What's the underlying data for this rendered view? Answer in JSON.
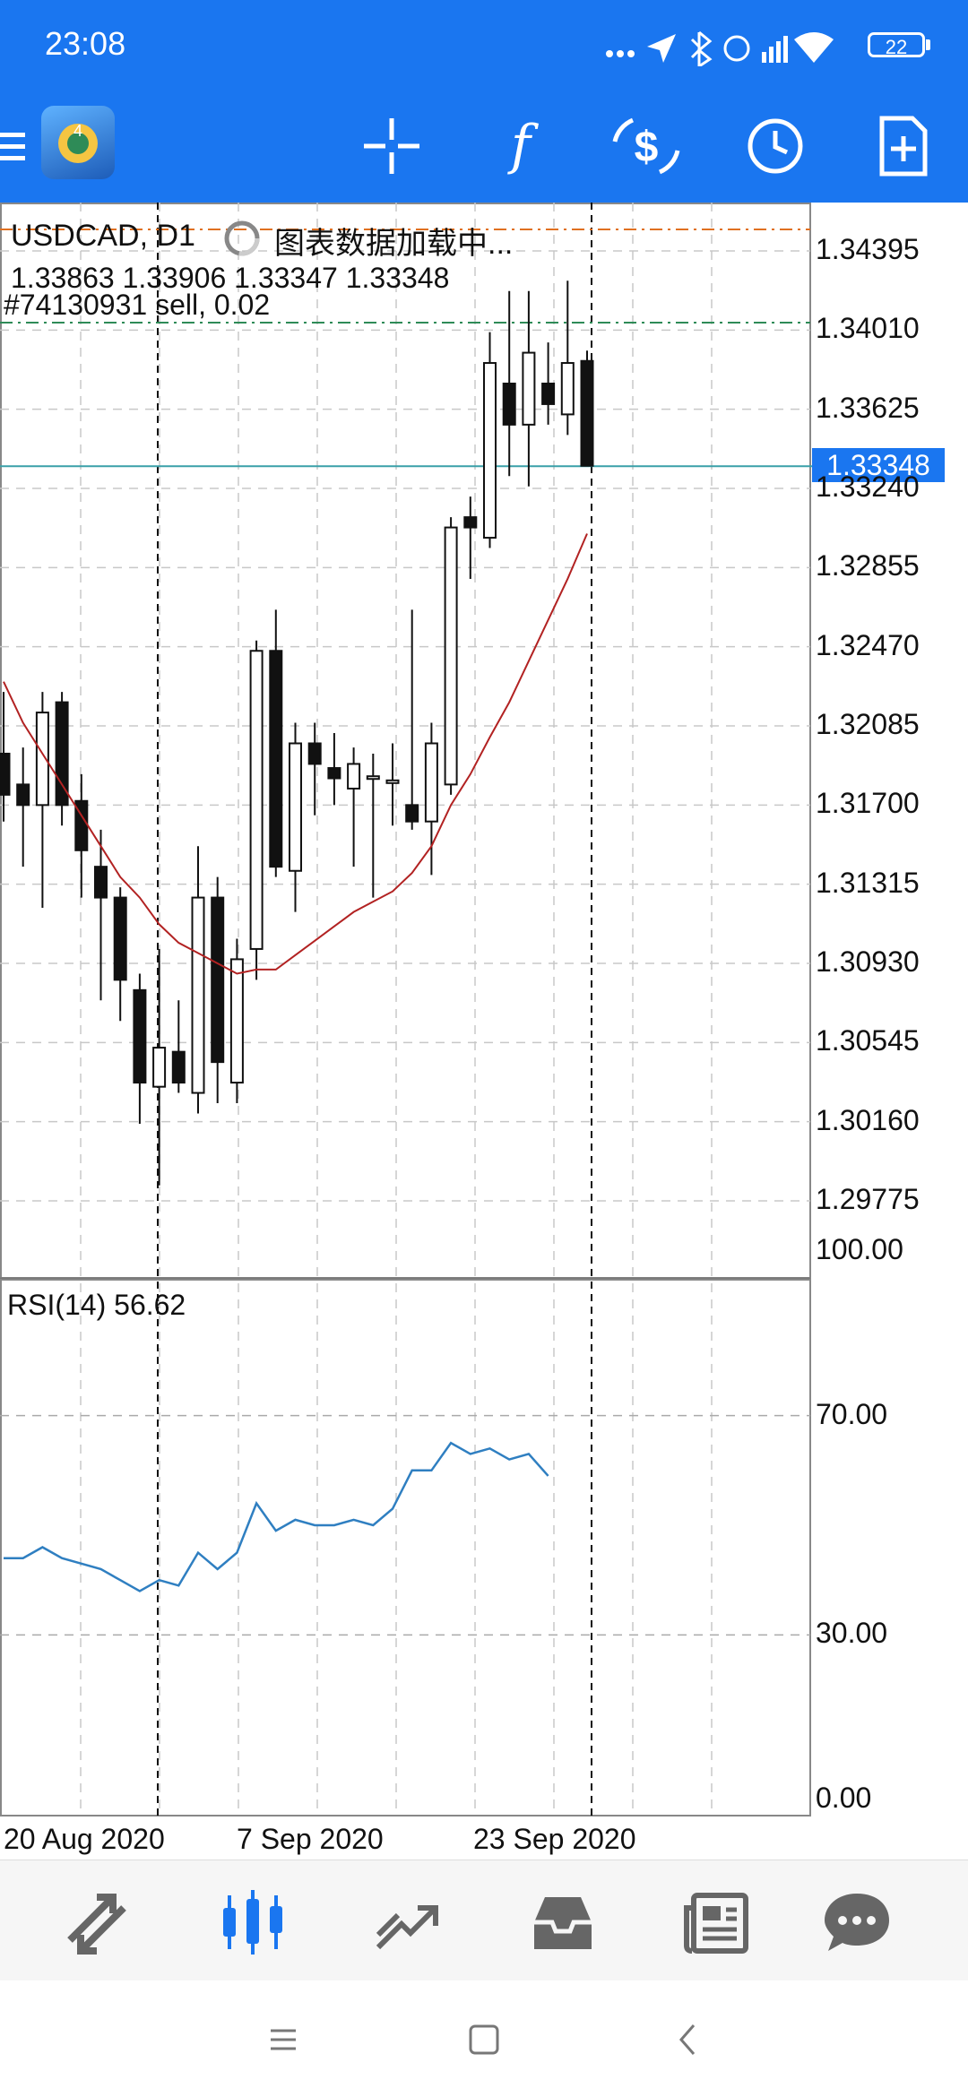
{
  "status_bar": {
    "time": "23:08",
    "battery": "22"
  },
  "toolbar": {
    "icons": [
      "menu-icon",
      "app-logo-icon",
      "crosshair-icon",
      "indicators-icon",
      "objects-icon",
      "timeframe-icon",
      "new-order-icon"
    ]
  },
  "chart": {
    "symbol": "USDCAD, D1",
    "loading": "图表数据加载中...",
    "ohlc": "1.33863 1.33906 1.33347 1.33348",
    "order": "#74130931 sell, 0.02",
    "current_price": "1.33348",
    "y_labels": [
      "1.34395",
      "1.34010",
      "1.33625",
      "1.33240",
      "1.32855",
      "1.32470",
      "1.32085",
      "1.31700",
      "1.31315",
      "1.30930",
      "1.30545",
      "1.30160",
      "1.29775"
    ],
    "x_labels": [
      "20 Aug 2020",
      "7 Sep 2020",
      "23 Sep 2020"
    ],
    "colors": {
      "ma": "#b22222",
      "rsi": "#2f7fc1",
      "bid_line": "#3aa0a8",
      "order_line": "#2e8b57",
      "top_line": "#e07020"
    }
  },
  "rsi": {
    "label": "RSI(14) 56.62",
    "levels": [
      "100.00",
      "70.00",
      "30.00",
      "0.00"
    ]
  },
  "bottom_nav": {
    "items": [
      "quotes-icon",
      "charts-icon",
      "trade-icon",
      "history-icon",
      "news-icon",
      "chat-icon"
    ]
  },
  "system_nav": {
    "items": [
      "recents-icon",
      "home-icon",
      "back-icon"
    ]
  },
  "chart_data": [
    {
      "type": "candlestick",
      "title": "USDCAD, D1",
      "x": [
        "20 Aug 2020",
        "7 Sep 2020",
        "23 Sep 2020"
      ],
      "ylim": [
        1.296,
        1.345
      ],
      "candles": [
        {
          "o": 1.3195,
          "h": 1.3225,
          "l": 1.3162,
          "c": 1.3175
        },
        {
          "o": 1.318,
          "h": 1.3198,
          "l": 1.314,
          "c": 1.317
        },
        {
          "o": 1.317,
          "h": 1.3225,
          "l": 1.312,
          "c": 1.3215
        },
        {
          "o": 1.322,
          "h": 1.3225,
          "l": 1.316,
          "c": 1.317
        },
        {
          "o": 1.3172,
          "h": 1.3185,
          "l": 1.3125,
          "c": 1.3148
        },
        {
          "o": 1.314,
          "h": 1.3158,
          "l": 1.3075,
          "c": 1.3125
        },
        {
          "o": 1.3125,
          "h": 1.313,
          "l": 1.3065,
          "c": 1.3085
        },
        {
          "o": 1.308,
          "h": 1.3088,
          "l": 1.3015,
          "c": 1.3035
        },
        {
          "o": 1.3033,
          "h": 1.31,
          "l": 1.2985,
          "c": 1.3052
        },
        {
          "o": 1.305,
          "h": 1.3075,
          "l": 1.303,
          "c": 1.3035
        },
        {
          "o": 1.303,
          "h": 1.315,
          "l": 1.302,
          "c": 1.3125
        },
        {
          "o": 1.3125,
          "h": 1.3135,
          "l": 1.3025,
          "c": 1.3045
        },
        {
          "o": 1.3035,
          "h": 1.3105,
          "l": 1.3025,
          "c": 1.3095
        },
        {
          "o": 1.31,
          "h": 1.325,
          "l": 1.3085,
          "c": 1.3245
        },
        {
          "o": 1.3245,
          "h": 1.3265,
          "l": 1.3135,
          "c": 1.314
        },
        {
          "o": 1.3138,
          "h": 1.321,
          "l": 1.3118,
          "c": 1.32
        },
        {
          "o": 1.32,
          "h": 1.321,
          "l": 1.3165,
          "c": 1.319
        },
        {
          "o": 1.3188,
          "h": 1.3205,
          "l": 1.317,
          "c": 1.3183
        },
        {
          "o": 1.3178,
          "h": 1.3198,
          "l": 1.314,
          "c": 1.319
        },
        {
          "o": 1.3183,
          "h": 1.3195,
          "l": 1.3125,
          "c": 1.3184
        },
        {
          "o": 1.3182,
          "h": 1.32,
          "l": 1.316,
          "c": 1.3182
        },
        {
          "o": 1.317,
          "h": 1.3265,
          "l": 1.3158,
          "c": 1.3162
        },
        {
          "o": 1.3162,
          "h": 1.321,
          "l": 1.3136,
          "c": 1.32
        },
        {
          "o": 1.318,
          "h": 1.331,
          "l": 1.3175,
          "c": 1.3305
        },
        {
          "o": 1.331,
          "h": 1.332,
          "l": 1.328,
          "c": 1.3305
        },
        {
          "o": 1.33,
          "h": 1.34,
          "l": 1.3295,
          "c": 1.3385
        },
        {
          "o": 1.3375,
          "h": 1.342,
          "l": 1.333,
          "c": 1.3355
        },
        {
          "o": 1.3355,
          "h": 1.342,
          "l": 1.3325,
          "c": 1.339
        },
        {
          "o": 1.3375,
          "h": 1.3395,
          "l": 1.3355,
          "c": 1.3365
        },
        {
          "o": 1.336,
          "h": 1.3425,
          "l": 1.335,
          "c": 1.3385
        },
        {
          "o": 1.3386,
          "h": 1.3391,
          "l": 1.3335,
          "c": 1.3335
        }
      ],
      "ma": [
        1.323,
        1.321,
        1.3195,
        1.318,
        1.3165,
        1.315,
        1.3135,
        1.3125,
        1.3112,
        1.3103,
        1.3098,
        1.3093,
        1.3088,
        1.309,
        1.309,
        1.3097,
        1.3104,
        1.3111,
        1.3118,
        1.3123,
        1.3128,
        1.3137,
        1.315,
        1.317,
        1.3185,
        1.3203,
        1.322,
        1.324,
        1.326,
        1.328,
        1.3302
      ]
    },
    {
      "type": "line",
      "title": "RSI(14) 56.62",
      "ylim": [
        0,
        100
      ],
      "series": [
        {
          "values": [
            44,
            44,
            46,
            44,
            43,
            42,
            40,
            38,
            40,
            39,
            45,
            42,
            45,
            54,
            49,
            51,
            50,
            50,
            51,
            50,
            53,
            60,
            60,
            65,
            63,
            64,
            62,
            63,
            59
          ]
        }
      ]
    }
  ]
}
